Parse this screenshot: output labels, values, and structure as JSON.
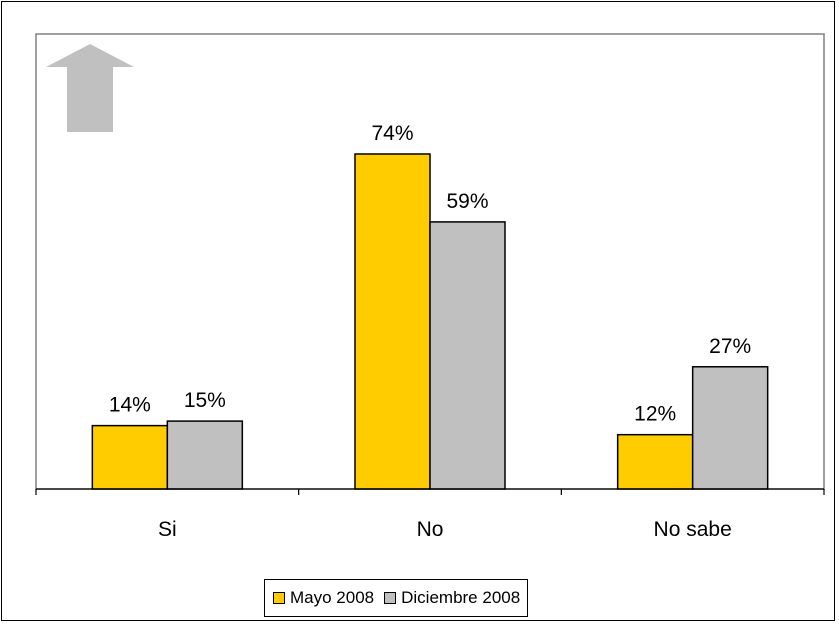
{
  "colors": {
    "series1": "#FFCC00",
    "series2": "#C0C0C0",
    "arrow": "#C0C0C0"
  },
  "icons": {
    "arrow": "up-arrow-icon"
  },
  "chart_data": {
    "type": "bar",
    "title": "",
    "xlabel": "",
    "ylabel": "",
    "ylim": [
      0,
      80
    ],
    "grid": false,
    "legend_position": "bottom",
    "categories": [
      "Si",
      "No",
      "No sabe"
    ],
    "series": [
      {
        "name": "Mayo 2008",
        "values": [
          14,
          74,
          12
        ],
        "labels": [
          "14%",
          "74%",
          "12%"
        ]
      },
      {
        "name": "Diciembre 2008",
        "values": [
          15,
          59,
          27
        ],
        "labels": [
          "15%",
          "59%",
          "27%"
        ]
      }
    ]
  }
}
